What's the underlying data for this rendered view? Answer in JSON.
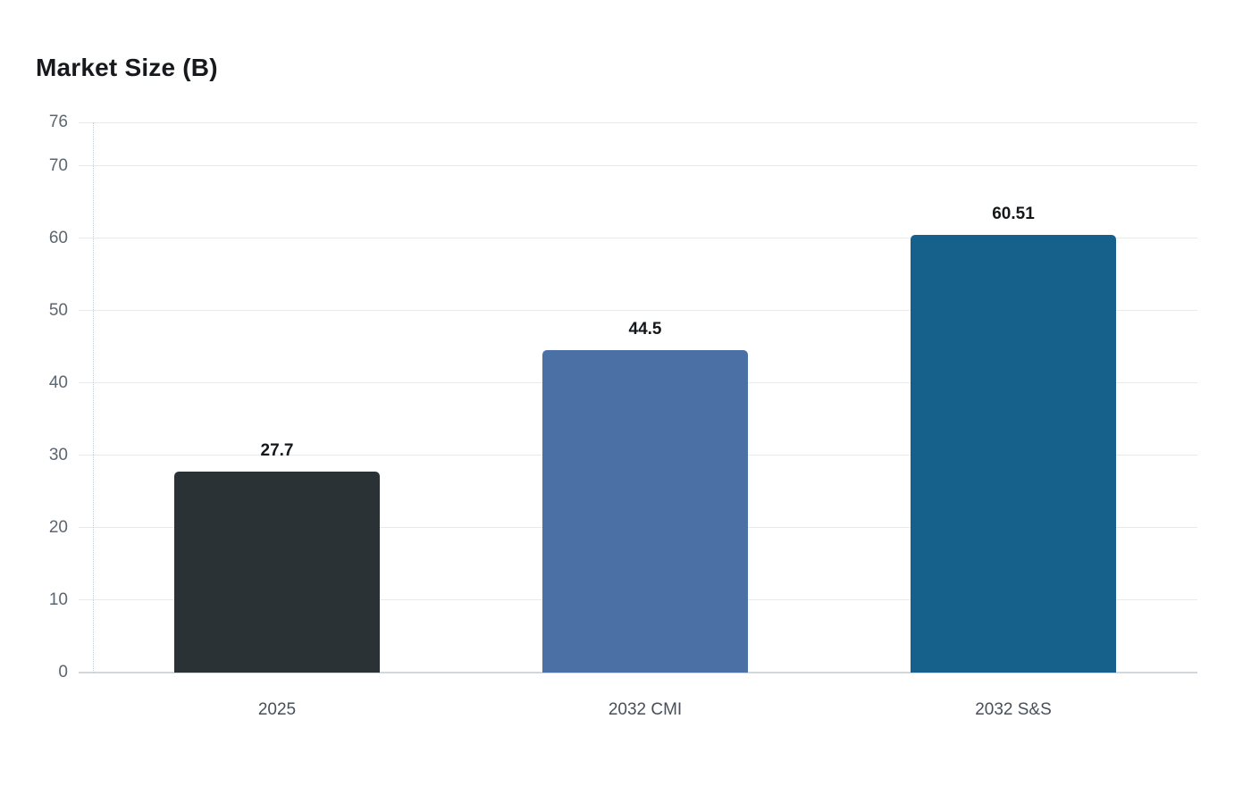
{
  "chart_data": {
    "type": "bar",
    "title": "Market Size (B)",
    "categories": [
      "2025",
      "2032 CMI",
      "2032 S&S"
    ],
    "values": [
      27.7,
      44.5,
      60.51
    ],
    "value_labels": [
      "27.7",
      "44.5",
      "60.51"
    ],
    "bar_colors": [
      "#2b3236",
      "#4b70a6",
      "#16618b"
    ],
    "xlabel": "",
    "ylabel": "",
    "ylim": [
      0,
      76
    ],
    "yticks": [
      0,
      10,
      20,
      30,
      40,
      50,
      60,
      70,
      76
    ],
    "grid": true,
    "legend_position": "none",
    "colors": {
      "background": "#ffffff",
      "gridline": "#e9eaec",
      "baseline": "#d2d7dc",
      "axis_dotted_line": "#c6cbd0",
      "ytick_label": "#5c6670",
      "xtick_label": "#47505a",
      "value_label": "#15181b",
      "title": "#17191c"
    }
  }
}
